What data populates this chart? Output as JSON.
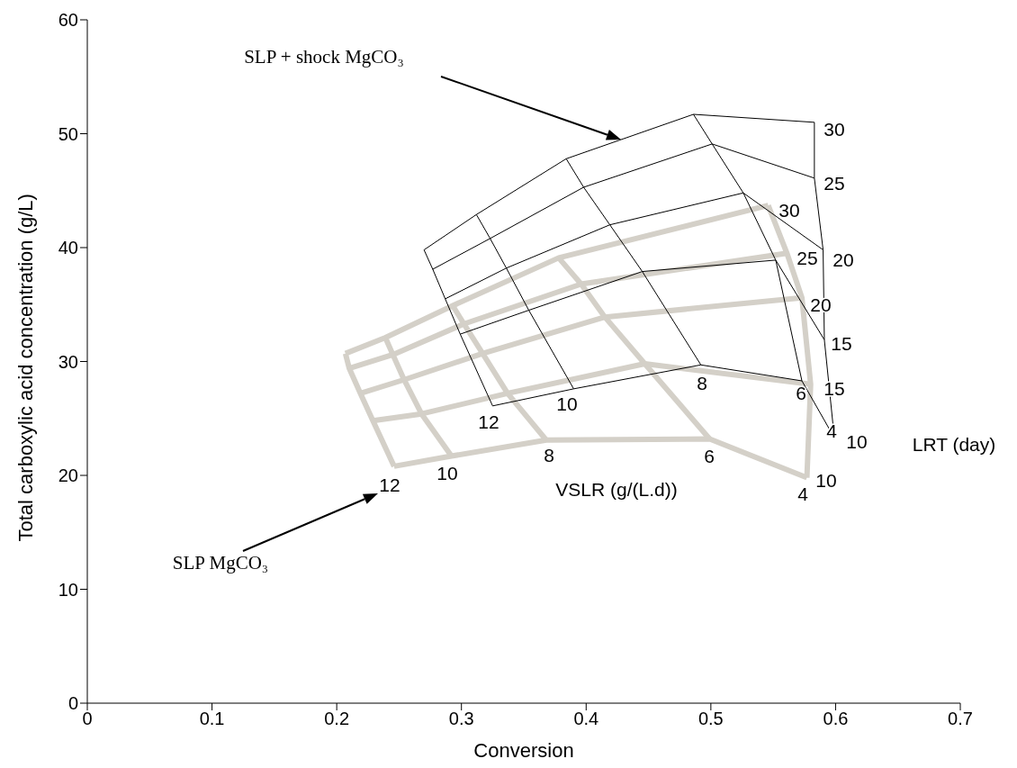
{
  "chart_data": {
    "type": "line",
    "xlabel": "Conversion",
    "ylabel": "Total carboxylic acid concentration (g/L)",
    "xlim": [
      0,
      0.7
    ],
    "xticks": [
      0,
      0.1,
      0.2,
      0.3,
      0.4,
      0.5,
      0.6,
      0.7
    ],
    "ylim": [
      0,
      60
    ],
    "yticks": [
      0,
      10,
      20,
      30,
      40,
      50,
      60
    ],
    "grid": false,
    "marker": "none",
    "line_style": "solid",
    "series": [
      {
        "color": "#d4d0c8",
        "x": [
          0.207,
          0.239,
          0.293,
          0.378,
          0.546
        ],
        "values": [
          30.7,
          32.1,
          34.9,
          39.1,
          43.7
        ]
      },
      {
        "color": "#d4d0c8",
        "x": [
          0.21,
          0.245,
          0.302,
          0.396,
          0.561
        ],
        "values": [
          29.4,
          30.6,
          33.3,
          36.8,
          39.5
        ]
      },
      {
        "color": "#d4d0c8",
        "x": [
          0.219,
          0.254,
          0.317,
          0.415,
          0.573
        ],
        "values": [
          27.2,
          28.4,
          30.7,
          33.9,
          35.6
        ]
      },
      {
        "color": "#d4d0c8",
        "x": [
          0.229,
          0.268,
          0.337,
          0.447,
          0.58
        ],
        "values": [
          24.8,
          25.4,
          27.2,
          29.8,
          28.0
        ]
      },
      {
        "color": "#d4d0c8",
        "x": [
          0.246,
          0.292,
          0.368,
          0.499,
          0.577
        ],
        "values": [
          20.8,
          21.7,
          23.1,
          23.2,
          19.8
        ]
      },
      {
        "color": "#d4d0c8",
        "x": [
          0.207,
          0.21,
          0.219,
          0.229,
          0.246
        ],
        "values": [
          30.7,
          29.4,
          27.2,
          24.8,
          20.8
        ]
      },
      {
        "color": "#d4d0c8",
        "x": [
          0.239,
          0.245,
          0.254,
          0.268,
          0.292
        ],
        "values": [
          32.1,
          30.6,
          28.4,
          25.4,
          21.7
        ]
      },
      {
        "color": "#d4d0c8",
        "x": [
          0.293,
          0.302,
          0.317,
          0.337,
          0.368
        ],
        "values": [
          34.9,
          33.3,
          30.7,
          27.2,
          23.1
        ]
      },
      {
        "color": "#d4d0c8",
        "x": [
          0.378,
          0.396,
          0.415,
          0.447,
          0.499
        ],
        "values": [
          39.1,
          36.8,
          33.9,
          29.8,
          23.2
        ]
      },
      {
        "color": "#d4d0c8",
        "x": [
          0.546,
          0.561,
          0.573,
          0.58,
          0.577
        ],
        "values": [
          43.7,
          39.5,
          35.6,
          28.0,
          19.8
        ]
      },
      {
        "color": "#000000",
        "x": [
          0.27,
          0.312,
          0.384,
          0.486,
          0.583
        ],
        "values": [
          39.8,
          42.9,
          47.8,
          51.7,
          51.0
        ]
      },
      {
        "color": "#000000",
        "x": [
          0.277,
          0.323,
          0.398,
          0.501,
          0.583
        ],
        "values": [
          38.1,
          40.8,
          45.3,
          49.1,
          46.1
        ]
      },
      {
        "color": "#000000",
        "x": [
          0.287,
          0.336,
          0.419,
          0.526,
          0.59
        ],
        "values": [
          35.5,
          38.2,
          42.0,
          44.8,
          39.8
        ]
      },
      {
        "color": "#000000",
        "x": [
          0.299,
          0.354,
          0.445,
          0.552,
          0.591
        ],
        "values": [
          32.4,
          34.5,
          37.9,
          38.9,
          31.9
        ]
      },
      {
        "color": "#000000",
        "x": [
          0.325,
          0.39,
          0.492,
          0.573,
          0.599
        ],
        "values": [
          26.1,
          27.6,
          29.7,
          28.3,
          23.3
        ]
      },
      {
        "color": "#000000",
        "x": [
          0.27,
          0.277,
          0.287,
          0.299,
          0.325
        ],
        "values": [
          39.8,
          38.1,
          35.5,
          32.4,
          26.1
        ]
      },
      {
        "color": "#000000",
        "x": [
          0.312,
          0.323,
          0.336,
          0.354,
          0.39
        ],
        "values": [
          42.9,
          40.8,
          38.2,
          34.5,
          27.6
        ]
      },
      {
        "color": "#000000",
        "x": [
          0.384,
          0.398,
          0.419,
          0.445,
          0.492
        ],
        "values": [
          47.8,
          45.3,
          42.0,
          37.9,
          29.7
        ]
      },
      {
        "color": "#000000",
        "x": [
          0.486,
          0.501,
          0.526,
          0.552,
          0.573
        ],
        "values": [
          51.7,
          49.1,
          44.8,
          38.9,
          28.3
        ]
      },
      {
        "color": "#000000",
        "x": [
          0.583,
          0.583,
          0.59,
          0.591,
          0.599
        ],
        "values": [
          51.0,
          46.1,
          39.8,
          31.9,
          23.3
        ]
      }
    ],
    "annotations": [
      "SLP + shock MgCO₃",
      "SLP MgCO₃",
      "30",
      "25",
      "20",
      "15",
      "10",
      "30",
      "25",
      "20",
      "15",
      "10",
      "12",
      "10",
      "8",
      "6",
      "4",
      "12",
      "10",
      "8",
      "6",
      "4",
      "VSLR (g/(L.d))",
      "LRT (day)"
    ]
  }
}
